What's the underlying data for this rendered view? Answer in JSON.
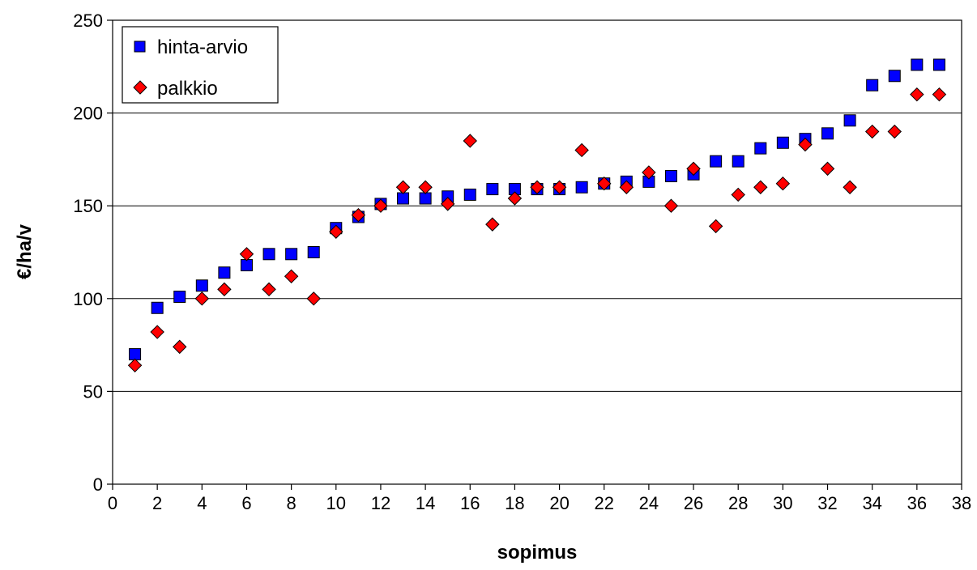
{
  "chart_data": {
    "type": "scatter",
    "title": "",
    "xlabel": "sopimus",
    "ylabel": "€/ha/v",
    "xlim": [
      0,
      38
    ],
    "ylim": [
      0,
      250
    ],
    "xticks": [
      0,
      2,
      4,
      6,
      8,
      10,
      12,
      14,
      16,
      18,
      20,
      22,
      24,
      26,
      28,
      30,
      32,
      34,
      36,
      38
    ],
    "yticks": [
      0,
      50,
      100,
      150,
      200,
      250
    ],
    "grid": "horizontal",
    "legend_position": "top-left",
    "series": [
      {
        "name": "hinta-arvio",
        "marker": "square",
        "color": "#0000ff",
        "x": [
          1,
          2,
          3,
          4,
          5,
          6,
          7,
          8,
          9,
          10,
          11,
          12,
          13,
          14,
          15,
          16,
          17,
          18,
          19,
          20,
          21,
          22,
          23,
          24,
          25,
          26,
          27,
          28,
          29,
          30,
          31,
          32,
          33,
          34,
          35,
          36,
          37
        ],
        "y": [
          70,
          95,
          101,
          107,
          114,
          118,
          124,
          124,
          125,
          138,
          144,
          151,
          154,
          154,
          155,
          156,
          159,
          159,
          159,
          159,
          160,
          162,
          163,
          163,
          166,
          167,
          174,
          174,
          181,
          184,
          186,
          189,
          196,
          215,
          220,
          226,
          226
        ]
      },
      {
        "name": "palkkio",
        "marker": "diamond",
        "color": "#ff0000",
        "x": [
          1,
          2,
          3,
          4,
          5,
          6,
          7,
          8,
          9,
          10,
          11,
          12,
          13,
          14,
          15,
          16,
          17,
          18,
          19,
          20,
          21,
          22,
          23,
          24,
          25,
          26,
          27,
          28,
          29,
          30,
          31,
          32,
          33,
          34,
          35,
          36,
          37
        ],
        "y": [
          64,
          82,
          74,
          100,
          105,
          124,
          105,
          112,
          100,
          136,
          145,
          150,
          160,
          160,
          151,
          185,
          140,
          154,
          160,
          160,
          180,
          162,
          160,
          168,
          150,
          170,
          139,
          156,
          160,
          162,
          183,
          170,
          160,
          190,
          190,
          210,
          210
        ]
      }
    ]
  }
}
